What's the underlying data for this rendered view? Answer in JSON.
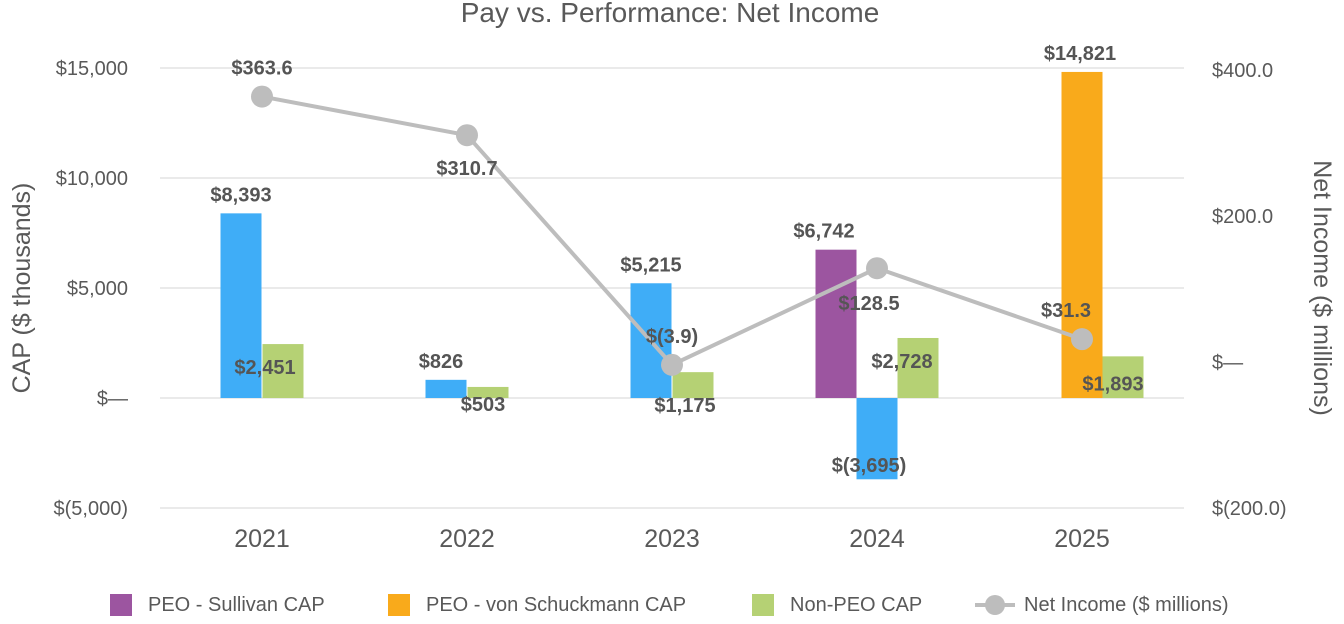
{
  "colors": {
    "sullivan": "#9c55a0",
    "von_schuckmann": "#f9aa1b",
    "peo_cap": "#3fadf7",
    "non_peo": "#b5d174",
    "net_income": "#bdbdbd",
    "text": "#595959",
    "label": "#555555"
  },
  "chart_data": {
    "type": "bar",
    "title": "Pay vs. Performance: Net Income",
    "categories": [
      "2021",
      "2022",
      "2023",
      "2024",
      "2025"
    ],
    "ylabel": "CAP ($ thousands)",
    "y2label": "Net Income ($ millions)",
    "ylim": [
      -5000,
      15000
    ],
    "y2lim": [
      -200,
      400
    ],
    "yticks": [
      {
        "value": 15000,
        "label": "$15,000"
      },
      {
        "value": 10000,
        "label": "$10,000"
      },
      {
        "value": 5000,
        "label": "$5,000"
      },
      {
        "value": 0,
        "label": "$—"
      },
      {
        "value": -5000,
        "label": "$(5,000)"
      }
    ],
    "y2ticks": [
      {
        "value": 400,
        "label": "$400.0"
      },
      {
        "value": 200,
        "label": "$200.0"
      },
      {
        "value": 0,
        "label": "$—"
      },
      {
        "value": -200,
        "label": "$(200.0)"
      }
    ],
    "grid": true,
    "legend_position": "bottom",
    "bars": [
      {
        "category": "2021",
        "kind": "peo_cap",
        "value": 8393,
        "label": "$8,393"
      },
      {
        "category": "2021",
        "kind": "non_peo",
        "value": 2451,
        "label": "$2,451"
      },
      {
        "category": "2022",
        "kind": "peo_cap",
        "value": 826,
        "label": "$826"
      },
      {
        "category": "2022",
        "kind": "non_peo",
        "value": 503,
        "label": "$503"
      },
      {
        "category": "2023",
        "kind": "peo_cap",
        "value": 5215,
        "label": "$5,215"
      },
      {
        "category": "2023",
        "kind": "non_peo",
        "value": 1175,
        "label": "$1,175"
      },
      {
        "category": "2024",
        "kind": "sullivan",
        "value": 6742,
        "label": "$6,742"
      },
      {
        "category": "2024",
        "kind": "peo_cap",
        "value": -3695,
        "label": "$(3,695)"
      },
      {
        "category": "2024",
        "kind": "non_peo",
        "value": 2728,
        "label": "$2,728"
      },
      {
        "category": "2025",
        "kind": "von_schuckmann",
        "value": 14821,
        "label": "$14,821"
      },
      {
        "category": "2025",
        "kind": "non_peo",
        "value": 1893,
        "label": "$1,893"
      }
    ],
    "line": {
      "name": "Net Income ($ millions)",
      "axis": "right",
      "values": [
        363.6,
        310.7,
        -3.9,
        128.5,
        31.3
      ],
      "labels": [
        "$363.6",
        "$310.7",
        "$(3.9)",
        "$128.5",
        "$31.3"
      ]
    },
    "legend": [
      {
        "key": "sullivan",
        "label": "PEO - Sullivan CAP",
        "kind": "bar"
      },
      {
        "key": "von_schuckmann",
        "label": "PEO - von Schuckmann CAP",
        "kind": "bar"
      },
      {
        "key": "non_peo",
        "label": "Non-PEO CAP",
        "kind": "bar"
      },
      {
        "key": "net_income",
        "label": "Net Income ($ millions)",
        "kind": "line"
      }
    ]
  }
}
